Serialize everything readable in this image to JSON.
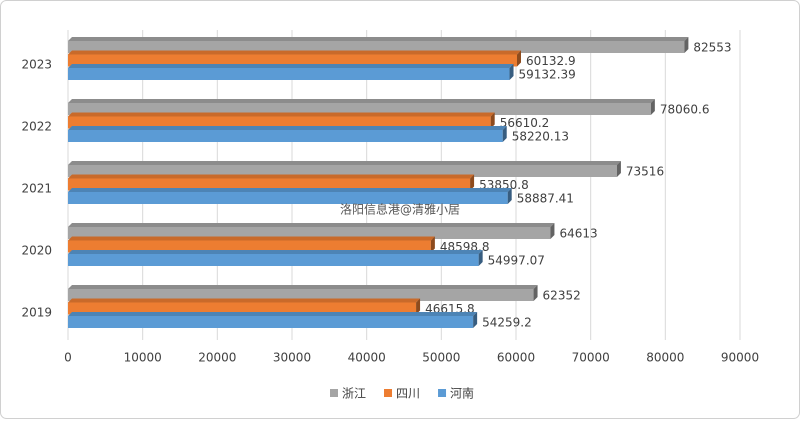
{
  "chart_data": {
    "type": "hbar",
    "annotation": "洛阳信息港@清雅小居",
    "categories": [
      "2019",
      "2020",
      "2021",
      "2022",
      "2023"
    ],
    "series": [
      {
        "name": "浙江",
        "color": "#a5a5a5",
        "values": [
          62352,
          64613,
          73516,
          78060.6,
          82553
        ]
      },
      {
        "name": "四川",
        "color": "#ed7d31",
        "values": [
          46615.8,
          48598.8,
          53850.8,
          56610.2,
          60132.9
        ]
      },
      {
        "name": "河南",
        "color": "#5b9bd5",
        "values": [
          54259.2,
          54997.07,
          58887.41,
          58220.13,
          59132.39
        ]
      }
    ],
    "xlim": [
      0,
      90000
    ],
    "xticks": [
      0,
      10000,
      20000,
      30000,
      40000,
      50000,
      60000,
      70000,
      80000,
      90000
    ],
    "grid": true,
    "legend": "bottom"
  }
}
